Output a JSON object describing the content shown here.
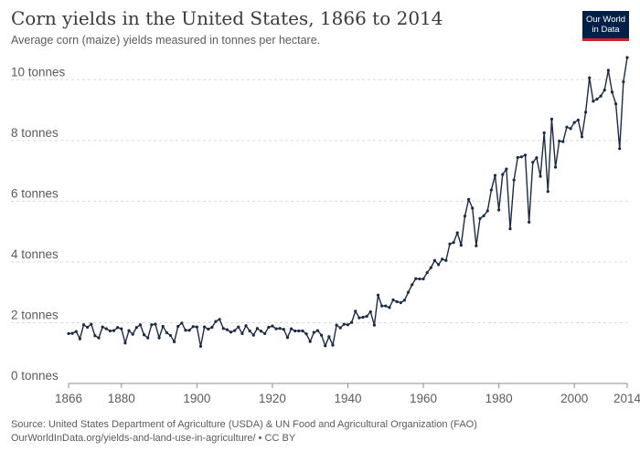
{
  "header": {
    "title": "Corn yields in the United States, 1866 to 2014",
    "subtitle": "Average corn (maize) yields measured in tonnes per hectare."
  },
  "logo": {
    "line1": "Our World",
    "line2": "in Data"
  },
  "footer": {
    "source": "Source: United States Department of Agriculture (USDA) & UN Food and Agricultural Organization (FAO)",
    "url": "OurWorldInData.org/yields-and-land-use-in-agriculture/ • CC BY"
  },
  "colors": {
    "line": "#1a2b45",
    "grid": "#d9d9d9",
    "logo_bg": "#002147",
    "logo_accent": "#ce261e"
  },
  "chart_data": {
    "type": "line",
    "title": "Corn yields in the United States, 1866 to 2014",
    "xlabel": "",
    "ylabel": "",
    "xlim": [
      1866,
      2014
    ],
    "ylim": [
      0,
      11
    ],
    "grid": true,
    "legend": "none",
    "x_ticks": [
      {
        "value": 1866,
        "label": "1866"
      },
      {
        "value": 1880,
        "label": "1880"
      },
      {
        "value": 1900,
        "label": "1900"
      },
      {
        "value": 1920,
        "label": "1920"
      },
      {
        "value": 1940,
        "label": "1940"
      },
      {
        "value": 1960,
        "label": "1960"
      },
      {
        "value": 1980,
        "label": "1980"
      },
      {
        "value": 2000,
        "label": "2000"
      },
      {
        "value": 2014,
        "label": "2014"
      }
    ],
    "y_ticks": [
      {
        "value": 0,
        "label": "0 tonnes"
      },
      {
        "value": 2,
        "label": "2 tonnes"
      },
      {
        "value": 4,
        "label": "4 tonnes"
      },
      {
        "value": 6,
        "label": "6 tonnes"
      },
      {
        "value": 8,
        "label": "8 tonnes"
      },
      {
        "value": 10,
        "label": "10 tonnes"
      }
    ],
    "series": [
      {
        "name": "United States",
        "x": [
          1866,
          1867,
          1868,
          1869,
          1870,
          1871,
          1872,
          1873,
          1874,
          1875,
          1876,
          1877,
          1878,
          1879,
          1880,
          1881,
          1882,
          1883,
          1884,
          1885,
          1886,
          1887,
          1888,
          1889,
          1890,
          1891,
          1892,
          1893,
          1894,
          1895,
          1896,
          1897,
          1898,
          1899,
          1900,
          1901,
          1902,
          1903,
          1904,
          1905,
          1906,
          1907,
          1908,
          1909,
          1910,
          1911,
          1912,
          1913,
          1914,
          1915,
          1916,
          1917,
          1918,
          1919,
          1920,
          1921,
          1922,
          1923,
          1924,
          1925,
          1926,
          1927,
          1928,
          1929,
          1930,
          1931,
          1932,
          1933,
          1934,
          1935,
          1936,
          1937,
          1938,
          1939,
          1940,
          1941,
          1942,
          1943,
          1944,
          1945,
          1946,
          1947,
          1948,
          1949,
          1950,
          1951,
          1952,
          1953,
          1954,
          1955,
          1956,
          1957,
          1958,
          1959,
          1960,
          1961,
          1962,
          1963,
          1964,
          1965,
          1966,
          1967,
          1968,
          1969,
          1970,
          1971,
          1972,
          1973,
          1974,
          1975,
          1976,
          1977,
          1978,
          1979,
          1980,
          1981,
          1982,
          1983,
          1984,
          1985,
          1986,
          1987,
          1988,
          1989,
          1990,
          1991,
          1992,
          1993,
          1994,
          1995,
          1996,
          1997,
          1998,
          1999,
          2000,
          2001,
          2002,
          2003,
          2004,
          2005,
          2006,
          2007,
          2008,
          2009,
          2010,
          2011,
          2012,
          2013,
          2014
        ],
        "values": [
          1.64,
          1.65,
          1.71,
          1.47,
          1.93,
          1.85,
          1.95,
          1.57,
          1.5,
          1.86,
          1.8,
          1.73,
          1.74,
          1.84,
          1.8,
          1.33,
          1.74,
          1.62,
          1.84,
          1.93,
          1.6,
          1.5,
          1.93,
          1.95,
          1.5,
          1.88,
          1.67,
          1.58,
          1.37,
          1.88,
          1.99,
          1.75,
          1.75,
          1.87,
          1.86,
          1.22,
          1.86,
          1.79,
          1.85,
          2.04,
          2.11,
          1.81,
          1.77,
          1.69,
          1.74,
          1.86,
          1.64,
          1.9,
          1.73,
          1.59,
          1.81,
          1.72,
          1.64,
          1.85,
          1.89,
          1.8,
          1.81,
          1.78,
          1.51,
          1.8,
          1.73,
          1.73,
          1.73,
          1.63,
          1.38,
          1.68,
          1.74,
          1.59,
          1.24,
          1.54,
          1.26,
          1.92,
          1.83,
          1.95,
          1.93,
          2.01,
          2.38,
          2.16,
          2.18,
          2.21,
          2.36,
          1.92,
          2.91,
          2.55,
          2.55,
          2.5,
          2.75,
          2.69,
          2.66,
          2.74,
          3.0,
          3.25,
          3.45,
          3.44,
          3.44,
          3.65,
          3.81,
          4.05,
          3.91,
          4.09,
          4.05,
          4.59,
          4.64,
          4.96,
          4.55,
          5.51,
          6.06,
          5.77,
          4.53,
          5.43,
          5.52,
          5.68,
          6.37,
          6.85,
          5.71,
          6.88,
          7.06,
          5.09,
          6.7,
          7.44,
          7.46,
          7.52,
          5.31,
          7.28,
          7.43,
          6.82,
          8.25,
          6.32,
          8.7,
          7.12,
          7.98,
          7.96,
          8.44,
          8.39,
          8.59,
          8.67,
          8.12,
          8.93,
          10.06,
          9.29,
          9.36,
          9.46,
          9.66,
          10.31,
          9.59,
          9.2,
          7.73,
          9.93,
          10.73
        ]
      }
    ]
  }
}
